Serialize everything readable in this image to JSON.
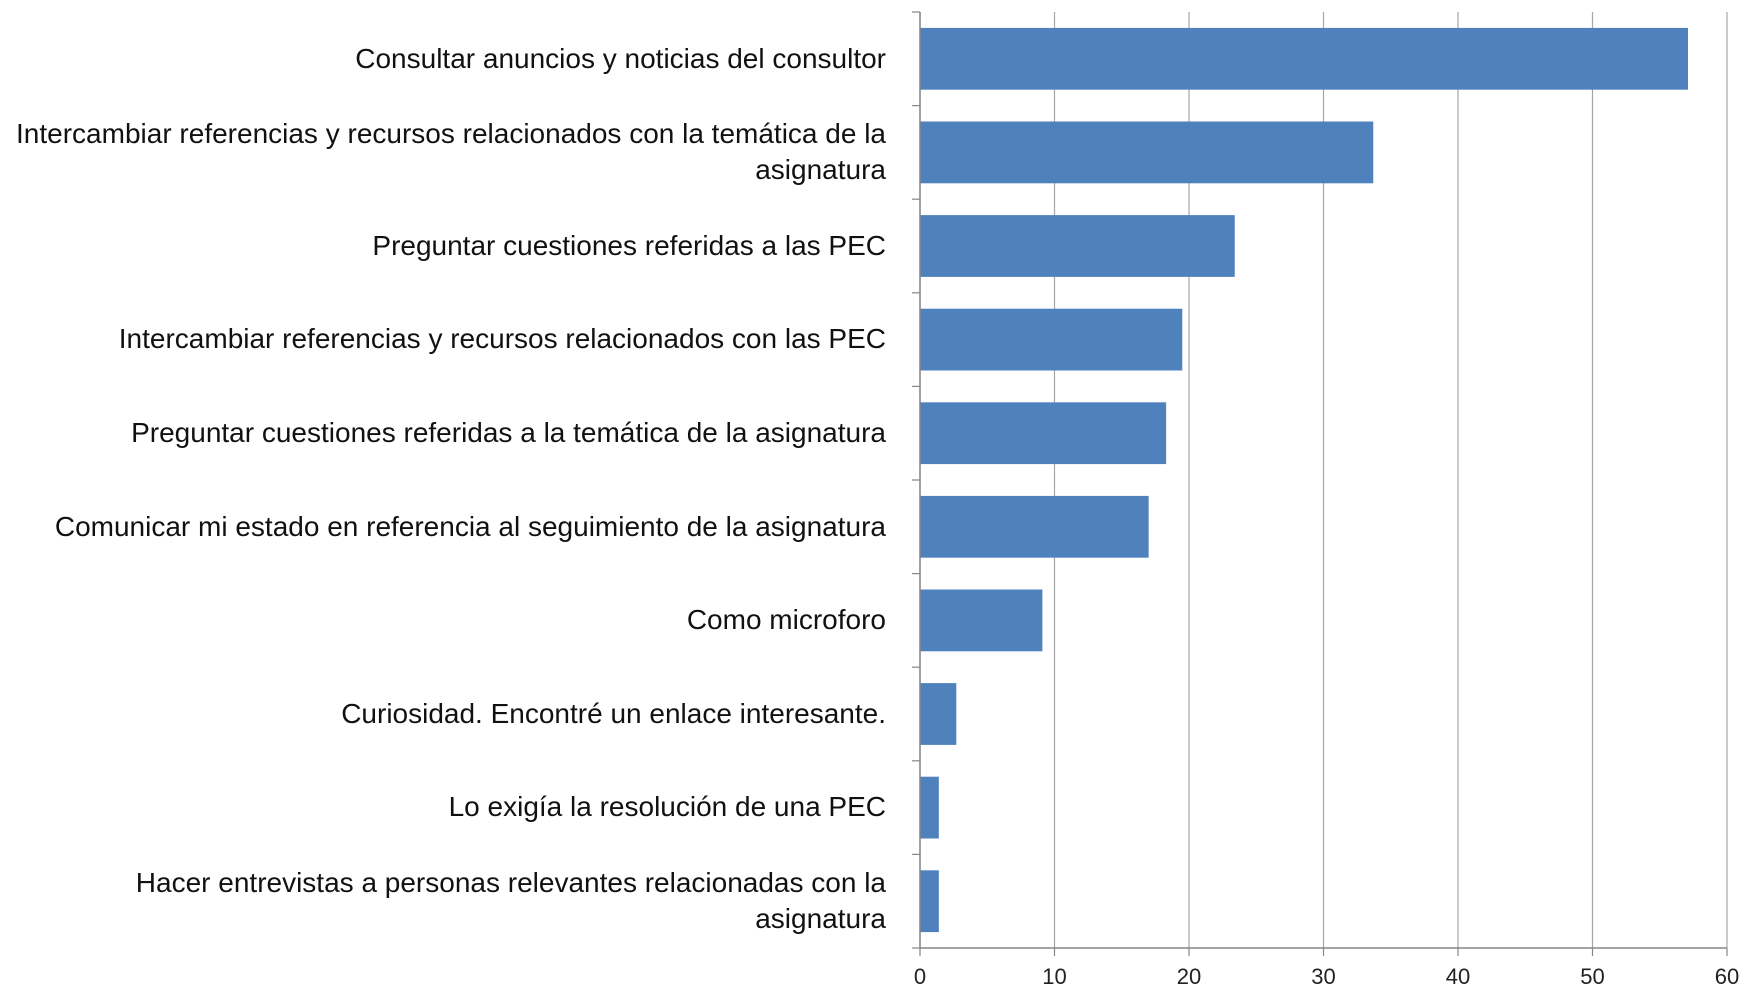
{
  "chart_data": {
    "type": "hbar",
    "categories": [
      "Consultar anuncios y noticias del consultor",
      "Intercambiar referencias y recursos relacionados con la temática de la asignatura",
      "Preguntar cuestiones referidas a las PEC",
      "Intercambiar referencias y recursos relacionados con las PEC",
      "Preguntar cuestiones referidas a la temática de la asignatura",
      "Comunicar mi estado en referencia al seguimiento de la asignatura",
      "Como microforo",
      "Curiosidad. Encontré un enlace interesante.",
      "Lo exigía la resolución de una PEC",
      "Hacer entrevistas a personas relevantes relacionadas con la asignatura"
    ],
    "values": [
      57.1,
      33.7,
      23.4,
      19.5,
      18.3,
      17.0,
      9.1,
      2.7,
      1.4,
      1.4
    ],
    "color": "#4f81bd",
    "xlim": [
      0,
      60
    ],
    "xticks": [
      0,
      10,
      20,
      30,
      40,
      50,
      60
    ],
    "grid": true
  }
}
